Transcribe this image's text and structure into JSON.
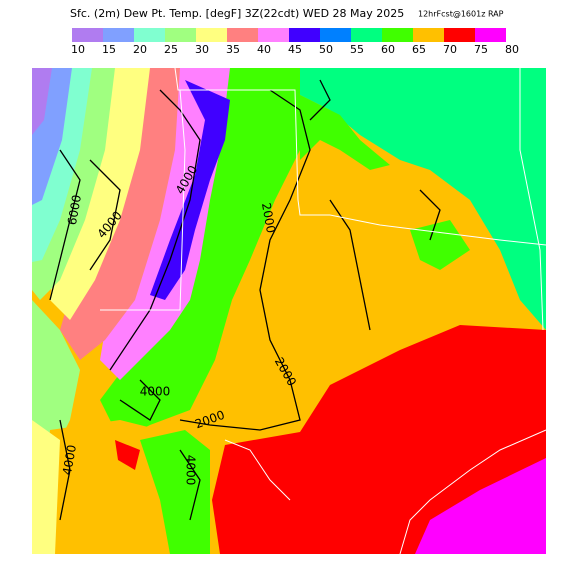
{
  "header": {
    "title": "Sfc. (2m) Dew Pt. Temp. [degF] 3Z(22cdt) WED 28 May 2025",
    "subtitle": "12hrFcst@1601z RAP"
  },
  "colorbar": {
    "ticks": [
      10,
      15,
      20,
      25,
      30,
      35,
      40,
      45,
      50,
      55,
      60,
      65,
      70,
      75,
      80
    ],
    "colors": [
      "#b07cf0",
      "#80a0ff",
      "#80ffd0",
      "#a0ff80",
      "#ffff80",
      "#ff8080",
      "#ff80ff",
      "#4000ff",
      "#0080ff",
      "#00ff80",
      "#40ff00",
      "#ffc000",
      "#ff0000",
      "#ff00ff"
    ]
  },
  "map": {
    "contour_labels": [
      6000,
      4000,
      4000,
      2000,
      2000,
      4000,
      2000,
      4000,
      4000
    ]
  }
}
